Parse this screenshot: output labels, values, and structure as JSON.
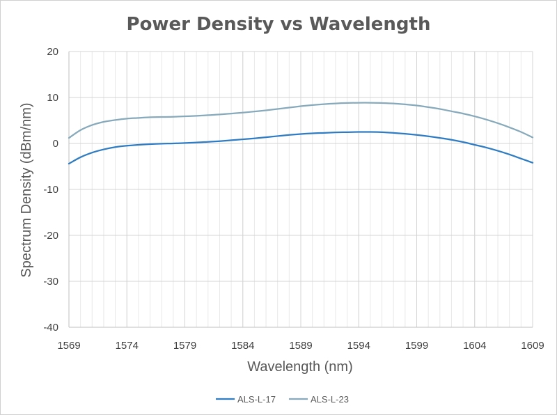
{
  "chart_data": {
    "type": "line",
    "title": "Power Density vs Wavelength",
    "xlabel": "Wavelength (nm)",
    "ylabel": "Spectrum Density (dBm/nm)",
    "xlim": [
      1569,
      1609
    ],
    "ylim": [
      -40,
      20
    ],
    "x_ticks": [
      1569,
      1574,
      1579,
      1584,
      1589,
      1594,
      1599,
      1604,
      1609
    ],
    "y_ticks": [
      20,
      10,
      0,
      -10,
      -20,
      -30,
      -40
    ],
    "x_minor_step": 1,
    "grid": true,
    "legend_position": "bottom",
    "series": [
      {
        "name": "ALS-L-17",
        "color": "#2e7cc4",
        "x": [
          1569,
          1570,
          1571,
          1572,
          1573,
          1574,
          1575,
          1576,
          1577,
          1578,
          1579,
          1580,
          1581,
          1582,
          1583,
          1584,
          1585,
          1586,
          1587,
          1588,
          1589,
          1590,
          1591,
          1592,
          1593,
          1594,
          1595,
          1596,
          1597,
          1598,
          1599,
          1600,
          1601,
          1602,
          1603,
          1604,
          1605,
          1606,
          1607,
          1608,
          1609
        ],
        "y": [
          -4.4,
          -3.0,
          -2.0,
          -1.3,
          -0.8,
          -0.5,
          -0.3,
          -0.15,
          -0.05,
          0.0,
          0.1,
          0.2,
          0.35,
          0.5,
          0.7,
          0.9,
          1.1,
          1.35,
          1.6,
          1.85,
          2.05,
          2.2,
          2.3,
          2.4,
          2.45,
          2.5,
          2.5,
          2.45,
          2.3,
          2.1,
          1.85,
          1.55,
          1.2,
          0.8,
          0.3,
          -0.3,
          -0.9,
          -1.6,
          -2.4,
          -3.3,
          -4.2
        ]
      },
      {
        "name": "ALS-L-23",
        "color": "#86aabb",
        "x": [
          1569,
          1570,
          1571,
          1572,
          1573,
          1574,
          1575,
          1576,
          1577,
          1578,
          1579,
          1580,
          1581,
          1582,
          1583,
          1584,
          1585,
          1586,
          1587,
          1588,
          1589,
          1590,
          1591,
          1592,
          1593,
          1594,
          1595,
          1596,
          1597,
          1598,
          1599,
          1600,
          1601,
          1602,
          1603,
          1604,
          1605,
          1606,
          1607,
          1608,
          1609
        ],
        "y": [
          1.2,
          2.9,
          4.0,
          4.7,
          5.1,
          5.4,
          5.55,
          5.7,
          5.75,
          5.8,
          5.9,
          6.0,
          6.15,
          6.3,
          6.5,
          6.7,
          6.95,
          7.2,
          7.5,
          7.8,
          8.1,
          8.35,
          8.55,
          8.7,
          8.8,
          8.85,
          8.85,
          8.8,
          8.7,
          8.5,
          8.25,
          7.9,
          7.5,
          7.0,
          6.5,
          5.9,
          5.2,
          4.4,
          3.5,
          2.5,
          1.3
        ]
      }
    ]
  }
}
